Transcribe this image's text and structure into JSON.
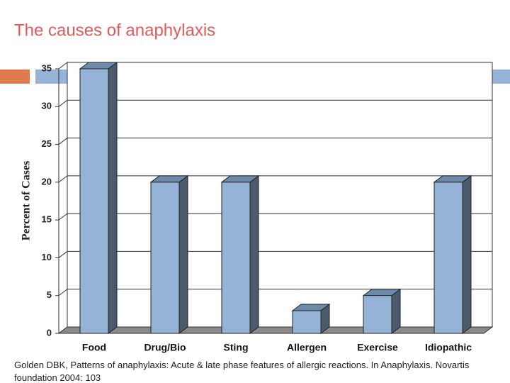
{
  "chart_data": {
    "type": "bar",
    "title": "The causes of anaphylaxis",
    "y_label": "Percent of Cases",
    "categories": [
      "Food",
      "Drug/Bio",
      "Sting",
      "Allergen",
      "Exercise",
      "Idiopathic"
    ],
    "values": [
      35,
      20,
      20,
      3,
      5,
      20
    ],
    "color": "#95b3d7",
    "ylim": [
      0,
      35
    ],
    "yticks": [
      0,
      5,
      10,
      15,
      20,
      25,
      30,
      35
    ],
    "grid": true,
    "footnote": "Golden DBK, Patterns of anaphylaxis: Acute & late phase features of allergic reactions. In Anaphylaxis. Novartis foundation 2004: 103"
  }
}
